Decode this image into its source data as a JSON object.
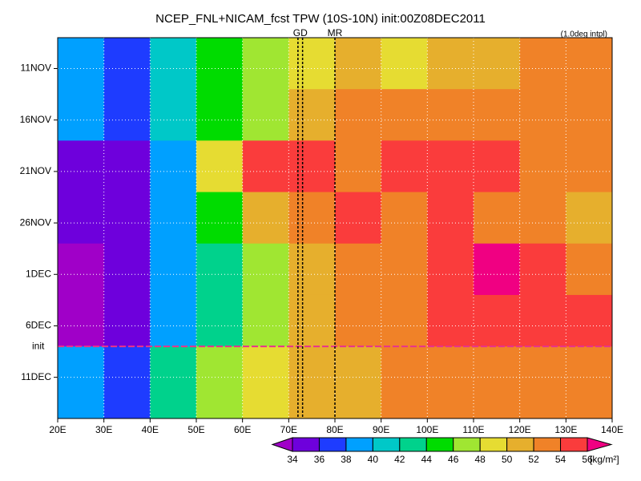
{
  "chart_data": {
    "type": "heatmap",
    "title": "NCEP_FNL+NICAM_fcst TPW (10S-10N) init:00Z08DEC2011",
    "subtitle": "(1.0deg intpl)",
    "xlim": [
      20,
      140
    ],
    "xticks": [
      {
        "value": 20,
        "label": "20E"
      },
      {
        "value": 30,
        "label": "30E"
      },
      {
        "value": 40,
        "label": "40E"
      },
      {
        "value": 50,
        "label": "50E"
      },
      {
        "value": 60,
        "label": "60E"
      },
      {
        "value": 70,
        "label": "70E"
      },
      {
        "value": 80,
        "label": "80E"
      },
      {
        "value": 90,
        "label": "90E"
      },
      {
        "value": 100,
        "label": "100E"
      },
      {
        "value": 110,
        "label": "110E"
      },
      {
        "value": 120,
        "label": "120E"
      },
      {
        "value": 130,
        "label": "130E"
      },
      {
        "value": 140,
        "label": "140E"
      }
    ],
    "ylim": [
      "11-08",
      "12-15"
    ],
    "yticks": [
      {
        "value": "11-11",
        "label": "11NOV"
      },
      {
        "value": "11-16",
        "label": "16NOV"
      },
      {
        "value": "11-21",
        "label": "21NOV"
      },
      {
        "value": "11-26",
        "label": "26NOV"
      },
      {
        "value": "12-01",
        "label": "1DEC"
      },
      {
        "value": "12-06",
        "label": "6DEC"
      },
      {
        "value": "12-11",
        "label": "11DEC"
      }
    ],
    "grid": true,
    "field": {
      "x_edges": [
        20,
        30,
        40,
        50,
        60,
        70,
        80,
        90,
        100,
        110,
        120,
        130,
        140
      ],
      "y_edges": [
        "11-08",
        "11-13",
        "11-18",
        "11-23",
        "11-28",
        "12-03",
        "12-08",
        "12-15"
      ],
      "values": [
        [
          39,
          37,
          41,
          45,
          47,
          49,
          50,
          49,
          50,
          51,
          52,
          52
        ],
        [
          38,
          36,
          40,
          44,
          47,
          50,
          52,
          52,
          52,
          52,
          52,
          52
        ],
        [
          35,
          34,
          38,
          48,
          54,
          55,
          53,
          54,
          55,
          55,
          53,
          52
        ],
        [
          34,
          34,
          38,
          45,
          50,
          53,
          54,
          53,
          54,
          53,
          52,
          51
        ],
        [
          33,
          34,
          38,
          43,
          47,
          50,
          52,
          53,
          55,
          56,
          55,
          53
        ],
        [
          33,
          34,
          38,
          42,
          46,
          50,
          52,
          53,
          55,
          55,
          55,
          55
        ],
        [
          38,
          36,
          43,
          47,
          49,
          50,
          51,
          52,
          52,
          52,
          53,
          53
        ]
      ]
    },
    "levels": [
      34,
      36,
      38,
      40,
      42,
      44,
      46,
      48,
      50,
      52,
      54,
      56
    ],
    "colors": [
      "#a000c8",
      "#6e00dc",
      "#1e3cff",
      "#00a0ff",
      "#00c8c8",
      "#00d28c",
      "#00dc00",
      "#a0e632",
      "#e6dc32",
      "#e6af2d",
      "#f08228",
      "#fa3c3c",
      "#f00082"
    ],
    "colorbar_label": "[kg/m²]",
    "hlines": [
      {
        "label": "init",
        "y": "12-08",
        "color": "#e8338c"
      }
    ],
    "vlines": [
      {
        "label": "GD",
        "x": [
          72,
          73
        ],
        "color": "#e02020"
      },
      {
        "label": "MR",
        "x": [
          80
        ],
        "color": "#e02020"
      }
    ]
  }
}
